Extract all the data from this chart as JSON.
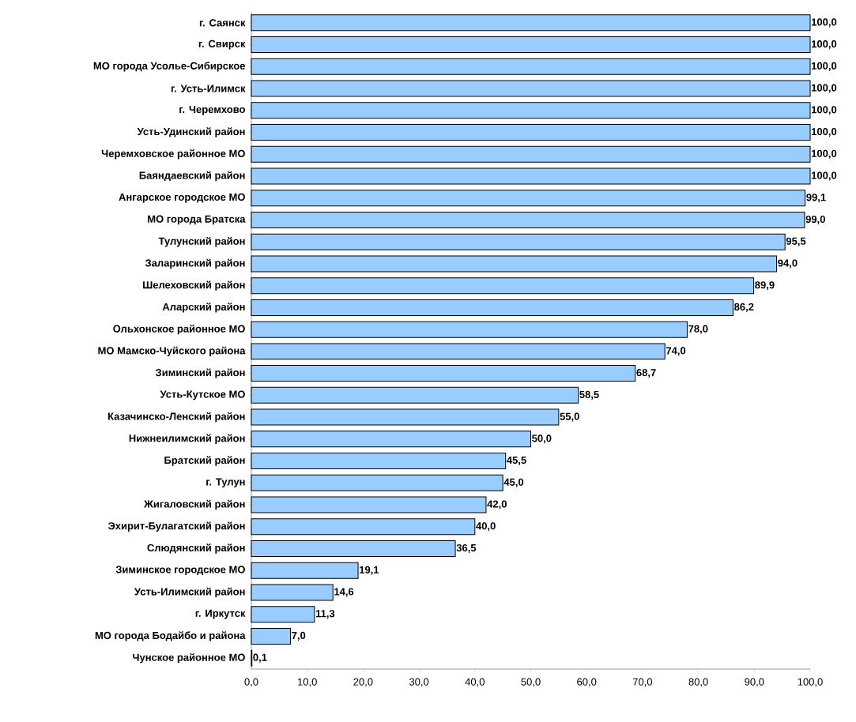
{
  "chart_data": {
    "type": "bar",
    "orientation": "horizontal",
    "categories": [
      "г. Саянск",
      "г. Свирск",
      "МО города Усолье-Сибирское",
      "г. Усть-Илимск",
      "г. Черемхово",
      "Усть-Удинский район",
      "Черемховское районное МО",
      "Баяндаевский район",
      "Ангарское городское МО",
      "МО города Братска",
      "Тулунский район",
      "Заларинский район",
      "Шелеховский район",
      "Аларский район",
      "Ольхонское районное МО",
      "МО Мамско-Чуйского района",
      "Зиминский район",
      "Усть-Кутское МО",
      "Казачинско-Ленский район",
      "Нижнеилимский район",
      "Братский район",
      "г. Тулун",
      "Жигаловский район",
      "Эхирит-Булагатский район",
      "Слюдянский район",
      "Зиминское городское МО",
      "Усть-Илимский район",
      "г. Иркутск",
      "МО города Бодайбо и района",
      "Чунское районное МО"
    ],
    "values": [
      100.0,
      100.0,
      100.0,
      100.0,
      100.0,
      100.0,
      100.0,
      100.0,
      99.1,
      99.0,
      95.5,
      94.0,
      89.9,
      86.2,
      78.0,
      74.0,
      68.7,
      58.5,
      55.0,
      50.0,
      45.5,
      45.0,
      42.0,
      40.0,
      36.5,
      19.1,
      14.6,
      11.3,
      7.0,
      0.1
    ],
    "value_labels": [
      "100,0",
      "100,0",
      "100,0",
      "100,0",
      "100,0",
      "100,0",
      "100,0",
      "100,0",
      "99,1",
      "99,0",
      "95,5",
      "94,0",
      "89,9",
      "86,2",
      "78,0",
      "74,0",
      "68,7",
      "58,5",
      "55,0",
      "50,0",
      "45,5",
      "45,0",
      "42,0",
      "40,0",
      "36,5",
      "19,1",
      "14,6",
      "11,3",
      "7,0",
      "0,1"
    ],
    "color": "#99ccff",
    "xlim": [
      0,
      100
    ],
    "xticks": [
      {
        "value": 0,
        "label": "0,0"
      },
      {
        "value": 10,
        "label": "10,0"
      },
      {
        "value": 20,
        "label": "20,0"
      },
      {
        "value": 30,
        "label": "30,0"
      },
      {
        "value": 40,
        "label": "40,0"
      },
      {
        "value": 50,
        "label": "50,0"
      },
      {
        "value": 60,
        "label": "60,0"
      },
      {
        "value": 70,
        "label": "70,0"
      },
      {
        "value": 80,
        "label": "80,0"
      },
      {
        "value": 90,
        "label": "90,0"
      },
      {
        "value": 100,
        "label": "100,0"
      }
    ],
    "grid": false
  }
}
